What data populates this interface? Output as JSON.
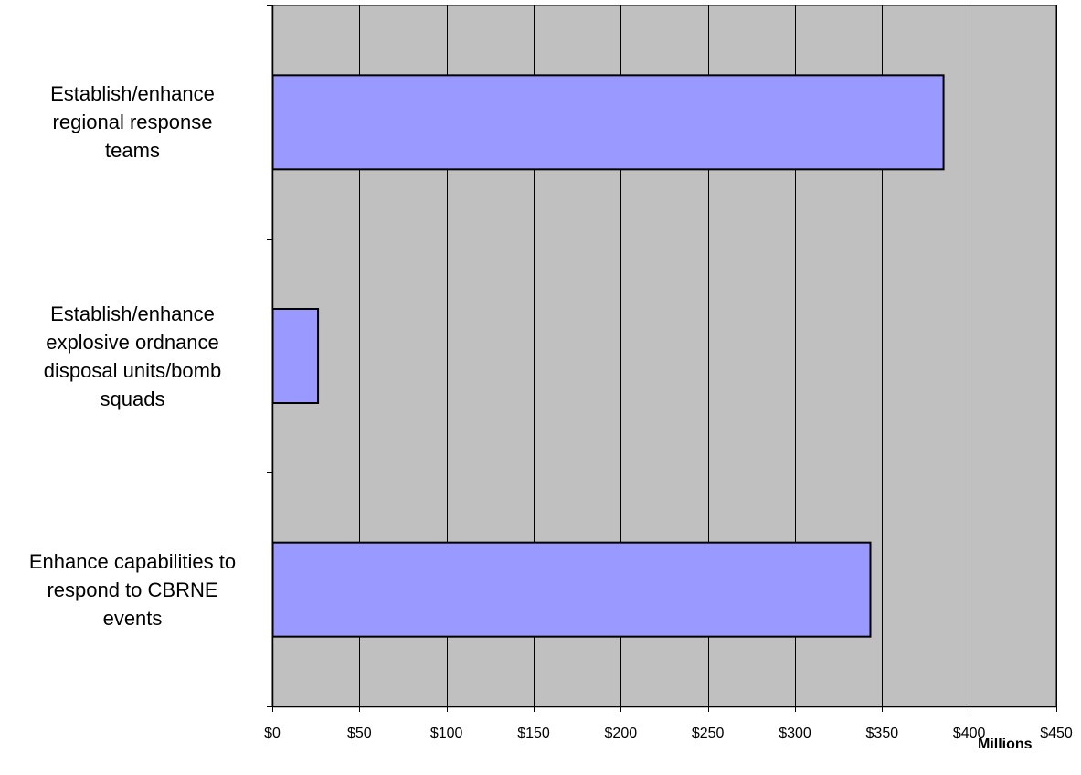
{
  "chart_data": {
    "type": "bar",
    "orientation": "horizontal",
    "categories": [
      "Establish/enhance regional response teams",
      "Establish/enhance explosive ordnance disposal units/bomb squads",
      "Enhance capabilities to respond to CBRNE events"
    ],
    "category_lines": [
      [
        "Establish/enhance",
        "regional response",
        "teams"
      ],
      [
        "Establish/enhance",
        "explosive ordnance",
        "disposal units/bomb",
        "squads"
      ],
      [
        "Enhance capabilities to",
        "respond to CBRNE",
        "events"
      ]
    ],
    "values": [
      385,
      26,
      343
    ],
    "xlim": [
      0,
      450
    ],
    "xticks": [
      0,
      50,
      100,
      150,
      200,
      250,
      300,
      350,
      400,
      450
    ],
    "xtick_labels": [
      "$0",
      "$50",
      "$100",
      "$150",
      "$200",
      "$250",
      "$300",
      "$350",
      "$400",
      "$450"
    ],
    "unit_label": "Millions",
    "grid": true,
    "colors": {
      "bar_fill": "#9999ff",
      "bar_stroke": "#000000",
      "plot_background": "#c0c0c0",
      "gridline": "#000000"
    }
  }
}
